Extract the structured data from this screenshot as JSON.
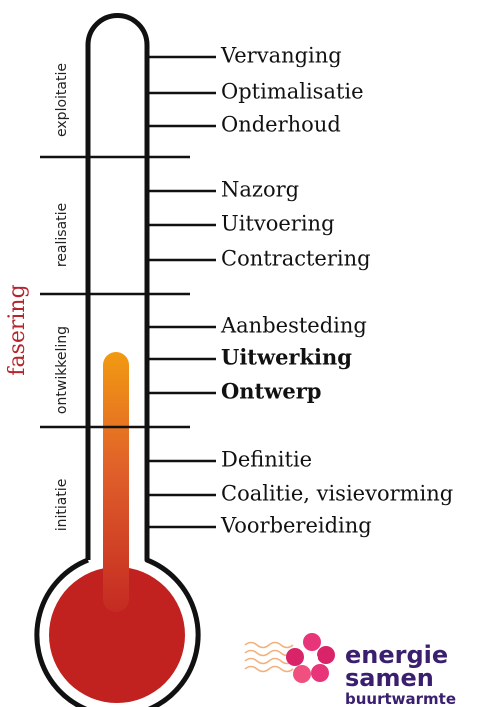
{
  "side_label": "fasering",
  "phases": [
    {
      "label": "exploitatie"
    },
    {
      "label": "realisatie"
    },
    {
      "label": "ontwikkeling"
    },
    {
      "label": "initiatie"
    }
  ],
  "steps": [
    {
      "label": "Vervanging",
      "bold": false
    },
    {
      "label": "Optimalisatie",
      "bold": false
    },
    {
      "label": "Onderhoud",
      "bold": false
    },
    {
      "label": "Nazorg",
      "bold": false
    },
    {
      "label": "Uitvoering",
      "bold": false
    },
    {
      "label": "Contractering",
      "bold": false
    },
    {
      "label": "Aanbesteding",
      "bold": false
    },
    {
      "label": "Uitwerking",
      "bold": true
    },
    {
      "label": "Ontwerp",
      "bold": true
    },
    {
      "label": "Definitie",
      "bold": false
    },
    {
      "label": "Coalitie, visievorming",
      "bold": false
    },
    {
      "label": "Voorbereiding",
      "bold": false
    }
  ],
  "logo": {
    "line1": "energie",
    "line2": "samen",
    "line3": "buurtwarmte"
  }
}
